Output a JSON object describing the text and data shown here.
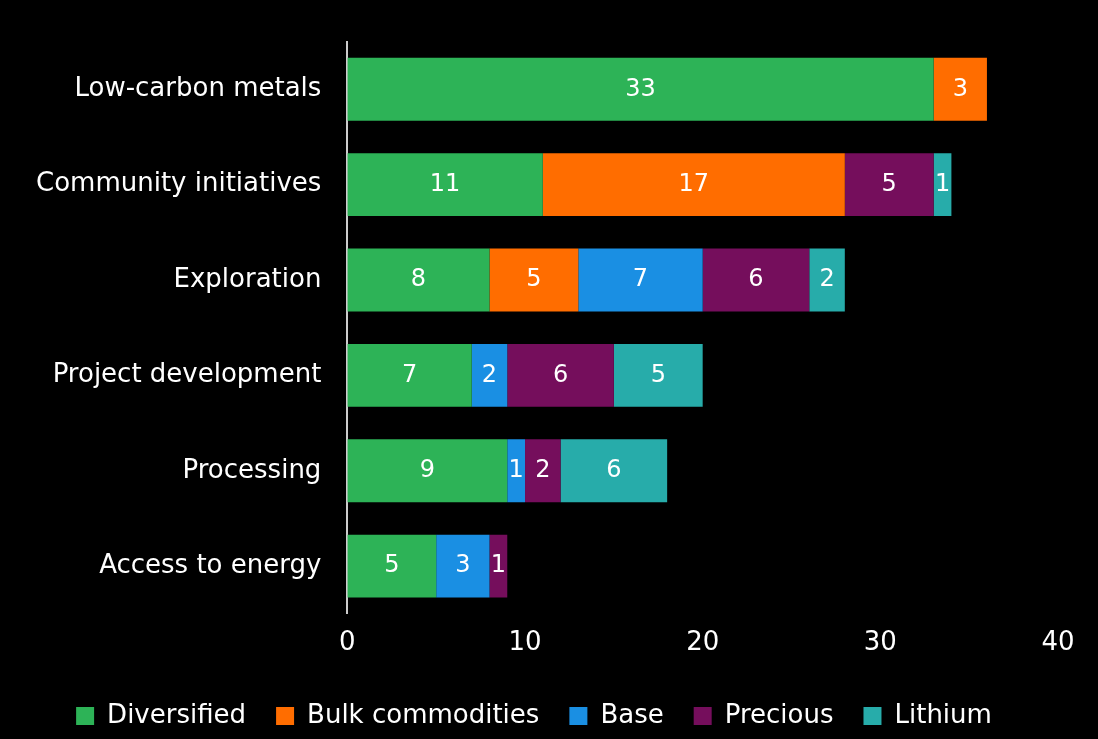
{
  "chart_data": {
    "type": "bar",
    "orientation": "horizontal",
    "stacked": true,
    "categories": [
      "Low-carbon metals",
      "Community initiatives",
      "Exploration",
      "Project development",
      "Processing",
      "Access to energy"
    ],
    "series": [
      {
        "name": "Diversified",
        "color": "#2db357",
        "values": [
          33,
          11,
          8,
          7,
          9,
          5
        ]
      },
      {
        "name": "Bulk commodities",
        "color": "#ff6d00",
        "values": [
          3,
          17,
          5,
          null,
          null,
          null
        ]
      },
      {
        "name": "Base",
        "color": "#1a8fe3",
        "values": [
          null,
          null,
          7,
          2,
          1,
          3
        ]
      },
      {
        "name": "Precious",
        "color": "#750e5c",
        "values": [
          null,
          5,
          6,
          6,
          2,
          1
        ]
      },
      {
        "name": "Lithium",
        "color": "#27acaa",
        "values": [
          null,
          1,
          2,
          5,
          6,
          null
        ]
      }
    ],
    "xlim": [
      0,
      40
    ],
    "xticks": [
      0,
      10,
      20,
      30,
      40
    ],
    "grid": false,
    "legend": "bottom",
    "data_labels": true
  }
}
